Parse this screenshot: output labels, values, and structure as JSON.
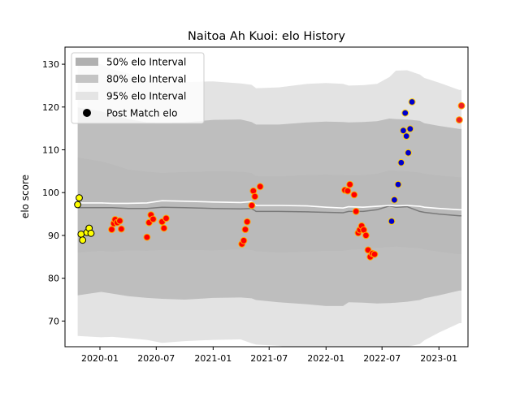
{
  "chart_data": {
    "type": "scatter",
    "title": "Naitoa Ah Kuoi: elo History",
    "xlabel": "",
    "ylabel": "elo score",
    "x_type": "date",
    "xlim": [
      "2019-09-10",
      "2023-04-05"
    ],
    "ylim": [
      64,
      134
    ],
    "x_ticks": [
      "2020-01-01",
      "2020-07-01",
      "2021-01-01",
      "2021-07-01",
      "2022-01-01",
      "2022-07-01",
      "2023-01-01"
    ],
    "x_tick_labels": [
      "2020-01",
      "2020-07",
      "2021-01",
      "2021-07",
      "2022-01",
      "2022-07",
      "2023-01"
    ],
    "y_ticks": [
      70,
      80,
      90,
      100,
      110,
      120,
      130
    ],
    "y_tick_labels": [
      "70",
      "80",
      "90",
      "100",
      "110",
      "120",
      "130"
    ],
    "grid": false,
    "legend_position": "top-left",
    "legend": [
      {
        "label": "50% elo Interval",
        "kind": "band",
        "color": "#b0b0b0"
      },
      {
        "label": "80% elo Interval",
        "kind": "band",
        "color": "#c4c4c4"
      },
      {
        "label": "95% elo Interval",
        "kind": "band",
        "color": "#e4e4e4"
      },
      {
        "label": "Post Match elo",
        "kind": "marker",
        "color": "#000000"
      }
    ],
    "band_x": [
      "2019-10-21",
      "2020-01-05",
      "2020-02-10",
      "2020-04-01",
      "2020-06-01",
      "2020-07-20",
      "2020-10-01",
      "2021-01-01",
      "2021-03-31",
      "2021-05-05",
      "2021-05-20",
      "2021-08-01",
      "2021-11-01",
      "2022-01-01",
      "2022-02-25",
      "2022-03-15",
      "2022-05-01",
      "2022-06-15",
      "2022-07-25",
      "2022-08-15",
      "2022-09-20",
      "2022-10-31",
      "2022-11-15",
      "2023-01-01",
      "2023-03-08",
      "2023-03-15"
    ],
    "mean_line": [
      96.5,
      96.5,
      96.5,
      96.3,
      96.3,
      96.6,
      96.5,
      96.3,
      96.2,
      96.3,
      95.6,
      95.6,
      95.5,
      95.4,
      95.3,
      95.6,
      95.6,
      96.0,
      96.9,
      96.6,
      96.7,
      95.6,
      95.4,
      95.0,
      94.6,
      94.6
    ],
    "median_line": [
      97.6,
      97.6,
      97.5,
      97.5,
      97.6,
      98.1,
      98.0,
      97.8,
      97.7,
      97.9,
      97.0,
      97.0,
      96.9,
      96.6,
      96.4,
      96.7,
      96.6,
      96.8,
      97.0,
      96.9,
      97.0,
      96.8,
      96.6,
      96.3,
      96.0,
      96.0
    ],
    "band_50": {
      "upper": [
        108.2,
        107.3,
        106.6,
        105.4,
        104.9,
        104.6,
        104.8,
        105.0,
        104.9,
        104.6,
        103.9,
        103.8,
        104.1,
        104.2,
        104.1,
        104.0,
        104.1,
        104.4,
        105.2,
        105.1,
        105.0,
        104.7,
        104.4,
        104.0,
        103.6,
        103.6
      ],
      "lower": [
        86.0,
        86.4,
        86.2,
        86.5,
        86.4,
        86.6,
        86.6,
        86.5,
        86.7,
        86.6,
        86.3,
        86.0,
        86.2,
        86.4,
        86.4,
        86.6,
        86.8,
        87.1,
        87.3,
        87.4,
        87.2,
        87.0,
        86.7,
        86.2,
        85.6,
        85.6
      ]
    },
    "band_80": {
      "upper": [
        119.9,
        119.0,
        118.1,
        117.2,
        116.4,
        116.3,
        116.4,
        117.0,
        117.1,
        116.5,
        115.9,
        115.9,
        116.4,
        116.6,
        116.5,
        116.4,
        116.5,
        116.7,
        117.3,
        117.2,
        117.1,
        116.8,
        116.2,
        115.6,
        114.9,
        114.9
      ],
      "lower": [
        76.0,
        76.8,
        76.4,
        75.8,
        75.4,
        75.2,
        75.0,
        75.4,
        75.5,
        75.3,
        74.9,
        74.4,
        73.9,
        73.5,
        73.5,
        74.4,
        74.3,
        74.1,
        74.2,
        74.3,
        74.5,
        74.9,
        75.3,
        76.0,
        77.1,
        77.1
      ]
    },
    "band_95": {
      "upper": [
        130.8,
        130.0,
        128.8,
        127.9,
        126.0,
        125.6,
        125.8,
        126.0,
        125.5,
        125.2,
        124.4,
        124.6,
        125.4,
        125.6,
        125.4,
        125.0,
        125.1,
        125.4,
        127.0,
        128.5,
        128.6,
        127.6,
        126.8,
        125.7,
        124.0,
        124.0
      ],
      "lower": [
        66.5,
        66.2,
        66.3,
        66.0,
        65.6,
        64.9,
        65.3,
        65.6,
        65.7,
        64.8,
        64.5,
        64.2,
        63.3,
        62.3,
        61.9,
        62.1,
        62.3,
        62.4,
        62.8,
        63.5,
        64.0,
        64.6,
        65.5,
        67.3,
        69.5,
        69.5
      ]
    },
    "series": [
      {
        "name": "Post Match elo",
        "fill": "#ffff00",
        "stroke": "#000000",
        "x": [
          "2019-10-21",
          "2019-10-26",
          "2019-11-01",
          "2019-11-06",
          "2019-11-20",
          "2019-11-27",
          "2019-12-03"
        ],
        "y": [
          97.2,
          98.8,
          90.3,
          88.9,
          90.7,
          91.7,
          90.5
        ]
      },
      {
        "name": "Post Match elo",
        "fill": "#ff0000",
        "stroke": "#ffaa00",
        "x": [
          "2020-02-08",
          "2020-02-15",
          "2020-02-19",
          "2020-02-26",
          "2020-03-05",
          "2020-03-10",
          "2020-06-01",
          "2020-06-08",
          "2020-06-14",
          "2020-06-21",
          "2020-07-20",
          "2020-07-26",
          "2020-08-02",
          "2021-04-04",
          "2021-04-10",
          "2021-04-15",
          "2021-04-21",
          "2021-05-06",
          "2021-05-11",
          "2021-05-16",
          "2021-06-02",
          "2022-03-03",
          "2022-03-12",
          "2022-03-19",
          "2022-04-02",
          "2022-04-08",
          "2022-04-15",
          "2022-04-20",
          "2022-04-26",
          "2022-05-03",
          "2022-05-10",
          "2022-05-17",
          "2022-05-24",
          "2022-05-31",
          "2022-06-07"
        ],
        "y": [
          91.4,
          92.8,
          93.7,
          93.0,
          93.4,
          91.5,
          89.6,
          93.0,
          94.8,
          93.8,
          93.2,
          91.7,
          94.0,
          88.0,
          88.8,
          91.4,
          93.2,
          97.0,
          100.4,
          99.1,
          101.4,
          100.6,
          100.4,
          101.9,
          99.5,
          95.6,
          90.6,
          91.3,
          92.2,
          91.3,
          90.0,
          86.6,
          85.0,
          85.8,
          85.6
        ]
      },
      {
        "name": "Post Match elo",
        "fill": "#0000cc",
        "stroke": "#ffcc00",
        "x": [
          "2022-08-01",
          "2022-08-10",
          "2022-08-22",
          "2022-09-01",
          "2022-09-08",
          "2022-09-14",
          "2022-09-18",
          "2022-09-24",
          "2022-09-30",
          "2022-10-06"
        ],
        "y": [
          93.3,
          98.3,
          101.9,
          107.0,
          114.5,
          118.6,
          113.2,
          109.3,
          114.9,
          121.2
        ]
      },
      {
        "name": "Post Match elo",
        "fill": "#ee2222",
        "stroke": "#ffaa00",
        "x": [
          "2023-03-08",
          "2023-03-15"
        ],
        "y": [
          117.0,
          120.3
        ]
      }
    ]
  }
}
